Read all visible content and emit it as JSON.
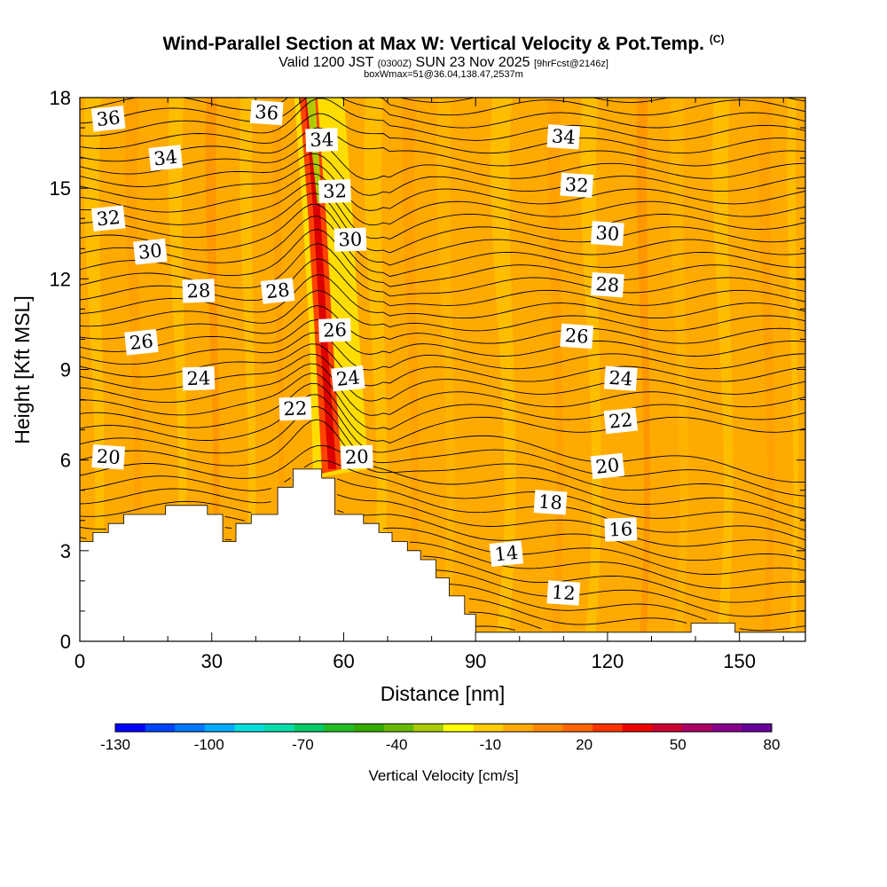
{
  "title": {
    "main": "Wind-Parallel Section at Max W: Vertical Velocity & Pot.Temp.",
    "copyright": "(C)",
    "valid_prefix": "Valid 1200 JST",
    "valid_utc": "(0300Z)",
    "valid_date": "SUN 23 Nov 2025",
    "forecast": "[9hrFcst@2146z]",
    "box_info": "boxWmax=51@36.04,138.47,2537m"
  },
  "chart_data": {
    "type": "heatmap",
    "xlabel": "Distance [nm]",
    "ylabel": "Height [Kft MSL]",
    "xlim": [
      0,
      165
    ],
    "ylim": [
      0,
      18
    ],
    "xticks": [
      0,
      30,
      60,
      90,
      120,
      150
    ],
    "yticks": [
      0,
      3,
      6,
      9,
      12,
      15,
      18
    ],
    "background_w": -5,
    "updraft": {
      "w_max": 51,
      "path": [
        [
          57.5,
          5.7
        ],
        [
          55.5,
          10
        ],
        [
          54,
          14
        ],
        [
          52,
          18
        ]
      ]
    },
    "contour_labels": [
      {
        "text": "36",
        "x": 6.5,
        "y": 17.3
      },
      {
        "text": "36",
        "x": 42.5,
        "y": 17.5
      },
      {
        "text": "34",
        "x": 55,
        "y": 16.6
      },
      {
        "text": "34",
        "x": 19.5,
        "y": 16.0
      },
      {
        "text": "34",
        "x": 110,
        "y": 16.7
      },
      {
        "text": "32",
        "x": 58,
        "y": 14.9
      },
      {
        "text": "32",
        "x": 6.5,
        "y": 14.0
      },
      {
        "text": "32",
        "x": 113,
        "y": 15.1
      },
      {
        "text": "30",
        "x": 61.5,
        "y": 13.3
      },
      {
        "text": "30",
        "x": 16,
        "y": 12.9
      },
      {
        "text": "30",
        "x": 120,
        "y": 13.5
      },
      {
        "text": "28",
        "x": 27,
        "y": 11.6
      },
      {
        "text": "28",
        "x": 45,
        "y": 11.6
      },
      {
        "text": "28",
        "x": 120,
        "y": 11.8
      },
      {
        "text": "26",
        "x": 58,
        "y": 10.3
      },
      {
        "text": "26",
        "x": 14,
        "y": 9.9
      },
      {
        "text": "26",
        "x": 113,
        "y": 10.1
      },
      {
        "text": "24",
        "x": 27,
        "y": 8.7
      },
      {
        "text": "24",
        "x": 61,
        "y": 8.7
      },
      {
        "text": "24",
        "x": 123,
        "y": 8.7
      },
      {
        "text": "22",
        "x": 49,
        "y": 7.7
      },
      {
        "text": "22",
        "x": 123,
        "y": 7.3
      },
      {
        "text": "20",
        "x": 6.5,
        "y": 6.1
      },
      {
        "text": "20",
        "x": 63,
        "y": 6.1
      },
      {
        "text": "20",
        "x": 120,
        "y": 5.8
      },
      {
        "text": "18",
        "x": 107,
        "y": 4.6
      },
      {
        "text": "16",
        "x": 123,
        "y": 3.7
      },
      {
        "text": "14",
        "x": 97,
        "y": 2.9
      },
      {
        "text": "12",
        "x": 110,
        "y": 1.6
      }
    ],
    "terrain_kft": [
      [
        0,
        3.3
      ],
      [
        3,
        3.3
      ],
      [
        3,
        3.6
      ],
      [
        6.5,
        3.6
      ],
      [
        6.5,
        3.9
      ],
      [
        10,
        3.9
      ],
      [
        10,
        4.2
      ],
      [
        19.5,
        4.2
      ],
      [
        19.5,
        4.5
      ],
      [
        29,
        4.5
      ],
      [
        29,
        4.2
      ],
      [
        32.5,
        4.2
      ],
      [
        32.5,
        3.3
      ],
      [
        35.5,
        3.3
      ],
      [
        35.5,
        3.9
      ],
      [
        39,
        3.9
      ],
      [
        39,
        4.2
      ],
      [
        45,
        4.2
      ],
      [
        45,
        5.1
      ],
      [
        48.5,
        5.1
      ],
      [
        48.5,
        5.7
      ],
      [
        55,
        5.7
      ],
      [
        55,
        5.4
      ],
      [
        58,
        5.4
      ],
      [
        58,
        4.2
      ],
      [
        64.5,
        4.2
      ],
      [
        64.5,
        3.9
      ],
      [
        68,
        3.9
      ],
      [
        68,
        3.6
      ],
      [
        71,
        3.6
      ],
      [
        71,
        3.3
      ],
      [
        74.5,
        3.3
      ],
      [
        74.5,
        3.0
      ],
      [
        77.5,
        3.0
      ],
      [
        77.5,
        2.7
      ],
      [
        81,
        2.7
      ],
      [
        81,
        2.1
      ],
      [
        84,
        2.1
      ],
      [
        84,
        1.5
      ],
      [
        87.5,
        1.5
      ],
      [
        87.5,
        0.9
      ],
      [
        90,
        0.9
      ],
      [
        90,
        0.3
      ],
      [
        139,
        0.3
      ],
      [
        139,
        0.6
      ],
      [
        149,
        0.6
      ],
      [
        149,
        0.3
      ],
      [
        165,
        0.3
      ]
    ]
  },
  "colorbar": {
    "title": "Vertical Velocity [cm/s]",
    "tick_labels": [
      "-130",
      "-100",
      "-70",
      "-40",
      "-10",
      "20",
      "50",
      "80"
    ],
    "colors": [
      "#0000ff",
      "#0044ff",
      "#0077ff",
      "#00aaff",
      "#00dddd",
      "#00ddaa",
      "#00cc66",
      "#22bb22",
      "#33aa00",
      "#66bb00",
      "#aacc00",
      "#ffff00",
      "#ffcc00",
      "#ffaa00",
      "#ff8800",
      "#ff6600",
      "#ff3300",
      "#ee0000",
      "#cc0033",
      "#aa0066",
      "#880088",
      "#660099"
    ]
  }
}
